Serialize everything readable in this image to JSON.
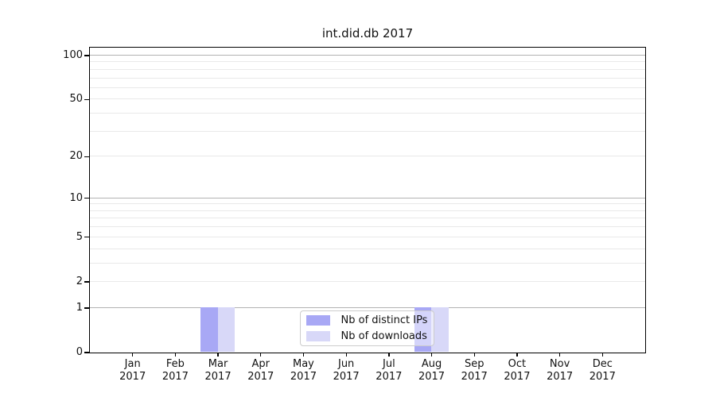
{
  "chart_data": {
    "type": "bar",
    "title": "int.did.db 2017",
    "x_categories": [
      {
        "month": "Jan",
        "year": "2017"
      },
      {
        "month": "Feb",
        "year": "2017"
      },
      {
        "month": "Mar",
        "year": "2017"
      },
      {
        "month": "Apr",
        "year": "2017"
      },
      {
        "month": "May",
        "year": "2017"
      },
      {
        "month": "Jun",
        "year": "2017"
      },
      {
        "month": "Jul",
        "year": "2017"
      },
      {
        "month": "Aug",
        "year": "2017"
      },
      {
        "month": "Sep",
        "year": "2017"
      },
      {
        "month": "Oct",
        "year": "2017"
      },
      {
        "month": "Nov",
        "year": "2017"
      },
      {
        "month": "Dec",
        "year": "2017"
      }
    ],
    "series": [
      {
        "name": "Nb of distinct IPs",
        "color": "#a8a8f5",
        "values": [
          0,
          0,
          1,
          0,
          0,
          0,
          0,
          1,
          0,
          0,
          0,
          0
        ]
      },
      {
        "name": "Nb of downloads",
        "color": "#d8d8f8",
        "values": [
          0,
          0,
          1,
          0,
          0,
          0,
          0,
          1,
          0,
          0,
          0,
          0
        ]
      }
    ],
    "y_axis": {
      "scale": "log1p",
      "ylim": [
        0,
        113
      ],
      "major_ticks": [
        0,
        1,
        2,
        5,
        10,
        20,
        50,
        100
      ],
      "decade_lines": [
        1,
        10,
        100
      ],
      "minor_lines": [
        3,
        4,
        6,
        7,
        8,
        9,
        30,
        40,
        60,
        70,
        80,
        90
      ]
    },
    "grid": true,
    "legend_position": "lower center"
  },
  "colors": {
    "major_grid": "#b2b2b2",
    "minor_grid": "#e9e9e9",
    "spine": "#000000",
    "text": "#111111",
    "legend_border": "#cccccc"
  }
}
